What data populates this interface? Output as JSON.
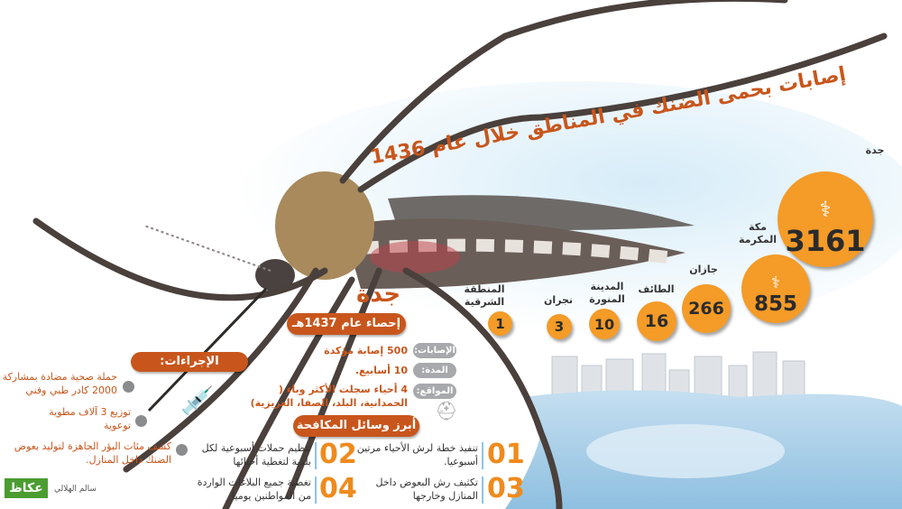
{
  "title": "إصابات بحمى الضنك في المناطق خلال عام 1436",
  "colors": {
    "accent": "#c8561c",
    "bubble": "#f49b28",
    "tag": "#a7a9ac",
    "logo": "#4a9d2f"
  },
  "regions": [
    {
      "name": "جدة",
      "value": 3161,
      "icon": "patient-doctor-icon"
    },
    {
      "name": "مكة المكرمة",
      "value": 855,
      "icon": "patient-doctor-icon"
    },
    {
      "name": "جازان",
      "value": 266
    },
    {
      "name": "الطائف",
      "value": 16
    },
    {
      "name": "المدينة المنورة",
      "value": 10
    },
    {
      "name": "نجران",
      "value": 3
    },
    {
      "name": "المنطقة الشرقية",
      "value": 1
    }
  ],
  "jeddah": {
    "heading": "جدة",
    "stats_title": "إحصاء عام 1437هـ",
    "stats": [
      {
        "label": "الإصابات:",
        "value": "500 إصابة مؤكدة"
      },
      {
        "label": "المدة:",
        "value": "10 أسابيع."
      },
      {
        "label": "المواقع:",
        "value": "4 أحياء سجلت الأكثر وباء ( الحمدانية، البلد، الصفا، العزيزية)"
      }
    ]
  },
  "procedures": {
    "title": "الإجراءات:",
    "items": [
      "حملة صحية مضادة بمشاركة 2000 كادر طبي وفني",
      "توزيع 3 آلاف مطوية توعوية",
      "كشف مئات البؤر الجاهزة لتوليد بعوض الضنك داخل المنازل."
    ]
  },
  "measures": {
    "title": "أبرز وسائل المكافحة :",
    "items": [
      {
        "num": "01",
        "text": "تنفيذ خطة لرش الأحياء مرتين أسبوعيا."
      },
      {
        "num": "02",
        "text": "تنظيم حملات أسبوعية لكل بلدية لتغطية أحيائها"
      },
      {
        "num": "03",
        "text": "تكثيف رش البعوض داخل المنازل وخارجها"
      },
      {
        "num": "04",
        "text": "تغطية جميع البلاغات الواردة من المواطنين يوميا"
      }
    ]
  },
  "credit": "سالم الهلالي",
  "logo": "عكاظ"
}
